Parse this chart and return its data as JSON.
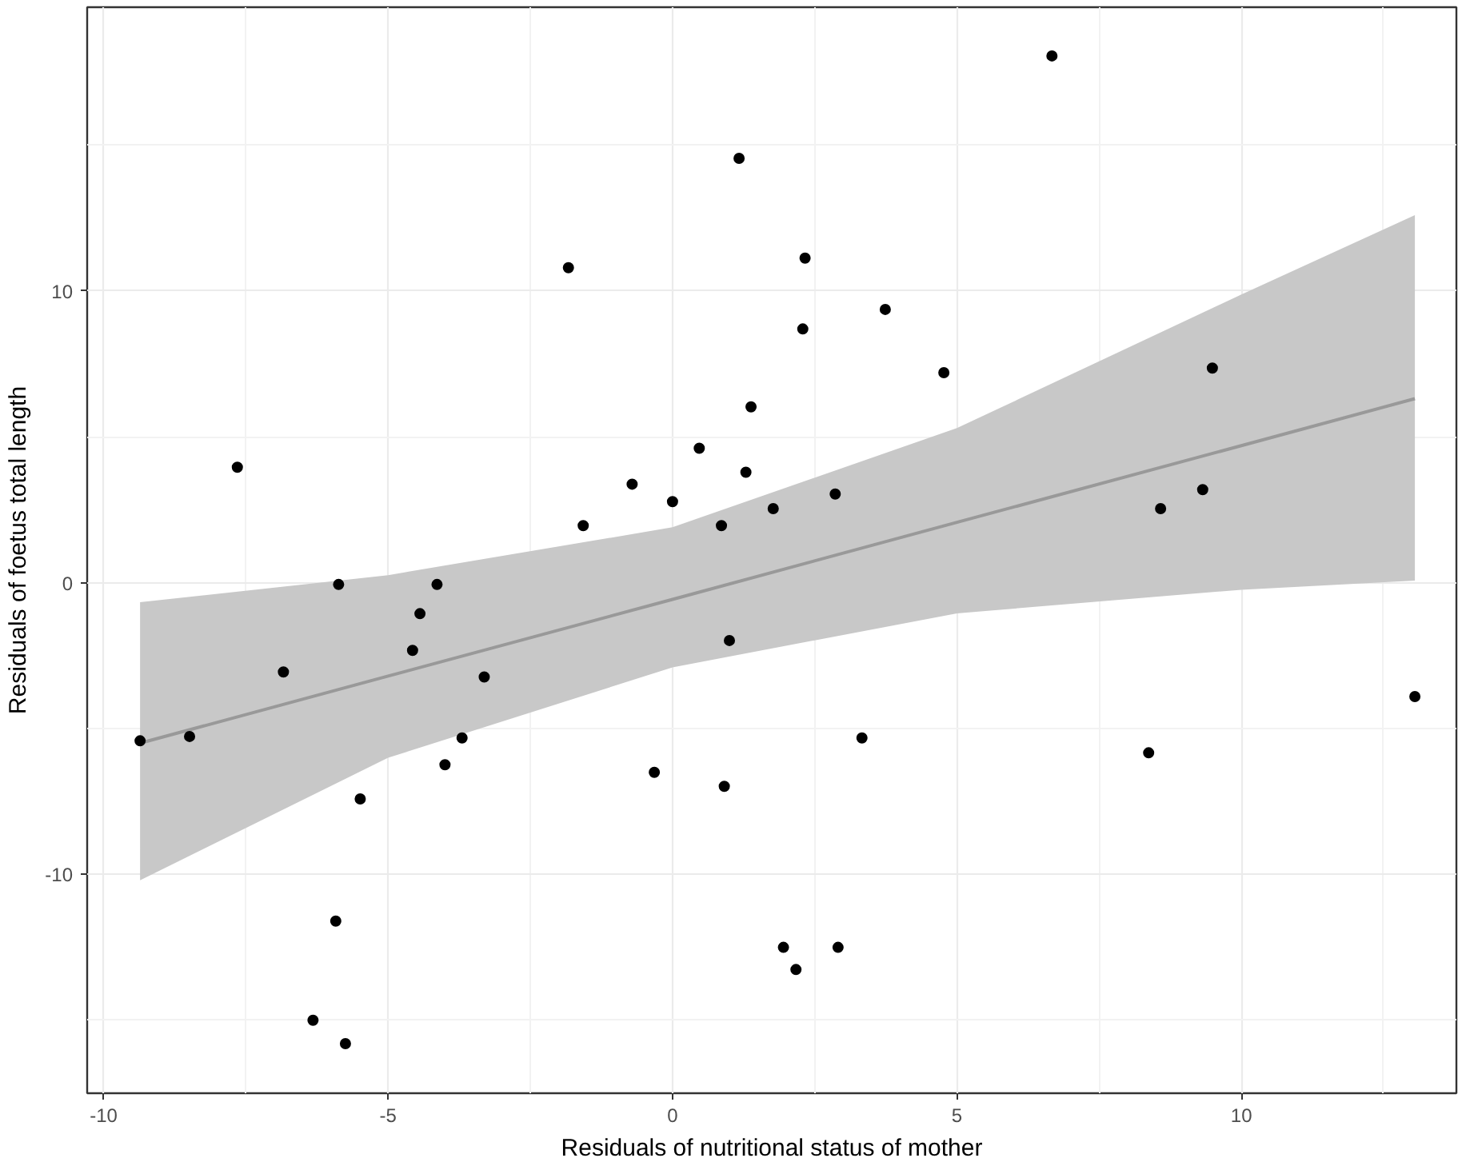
{
  "chart_data": {
    "type": "scatter",
    "xlabel": "Residuals of nutritional status of mother",
    "ylabel": "Residuals of foetus total length",
    "xlim": [
      -10.29,
      13.78
    ],
    "ylim": [
      -17.5,
      19.73
    ],
    "xticks": [
      -10,
      -5,
      0,
      5,
      10
    ],
    "yticks": [
      -10,
      0,
      10
    ],
    "grid": true,
    "series": [
      {
        "marker": "circle",
        "color": "#000000",
        "x": [
          -9.36,
          -8.49,
          -6.84,
          -5.87,
          -4.14,
          -4.44,
          -4.57,
          -3.31,
          -3.7,
          -4.0,
          -5.49,
          -5.92,
          -6.32,
          -5.75,
          -0.32,
          0.91,
          1.0,
          3.33,
          8.37,
          13.05,
          1.95,
          2.17,
          2.91,
          -7.65,
          -1.83,
          1.17,
          1.38,
          0.47,
          1.29,
          -0.71,
          0.0,
          -1.57,
          0.86,
          6.67,
          2.33,
          2.29,
          3.74,
          4.77,
          1.77,
          2.86,
          9.49,
          9.32,
          8.58
        ],
        "values": [
          -5.42,
          -5.27,
          -3.06,
          -0.06,
          -0.06,
          -1.06,
          -2.32,
          -3.23,
          -5.32,
          -6.24,
          -7.41,
          -11.6,
          -15.0,
          -15.8,
          -6.5,
          -6.98,
          -1.98,
          -5.32,
          -5.83,
          -3.9,
          -12.5,
          -13.26,
          -12.5,
          3.96,
          10.8,
          14.55,
          6.03,
          4.61,
          3.79,
          3.38,
          2.78,
          1.96,
          1.96,
          18.06,
          11.13,
          8.7,
          9.37,
          7.2,
          2.54,
          3.04,
          7.36,
          3.19,
          2.54
        ]
      },
      {
        "type": "line",
        "marker": "none",
        "color": "#999999",
        "x": [
          -9.36,
          -5,
          0,
          5,
          10,
          13.05
        ],
        "values": [
          -5.5,
          -3.2,
          -0.57,
          2.07,
          4.7,
          6.31
        ],
        "lower": [
          -10.2,
          -6.0,
          -2.9,
          -1.05,
          -0.24,
          0.07
        ],
        "upper": [
          -0.67,
          0.26,
          1.9,
          5.3,
          9.88,
          12.6
        ]
      }
    ]
  }
}
